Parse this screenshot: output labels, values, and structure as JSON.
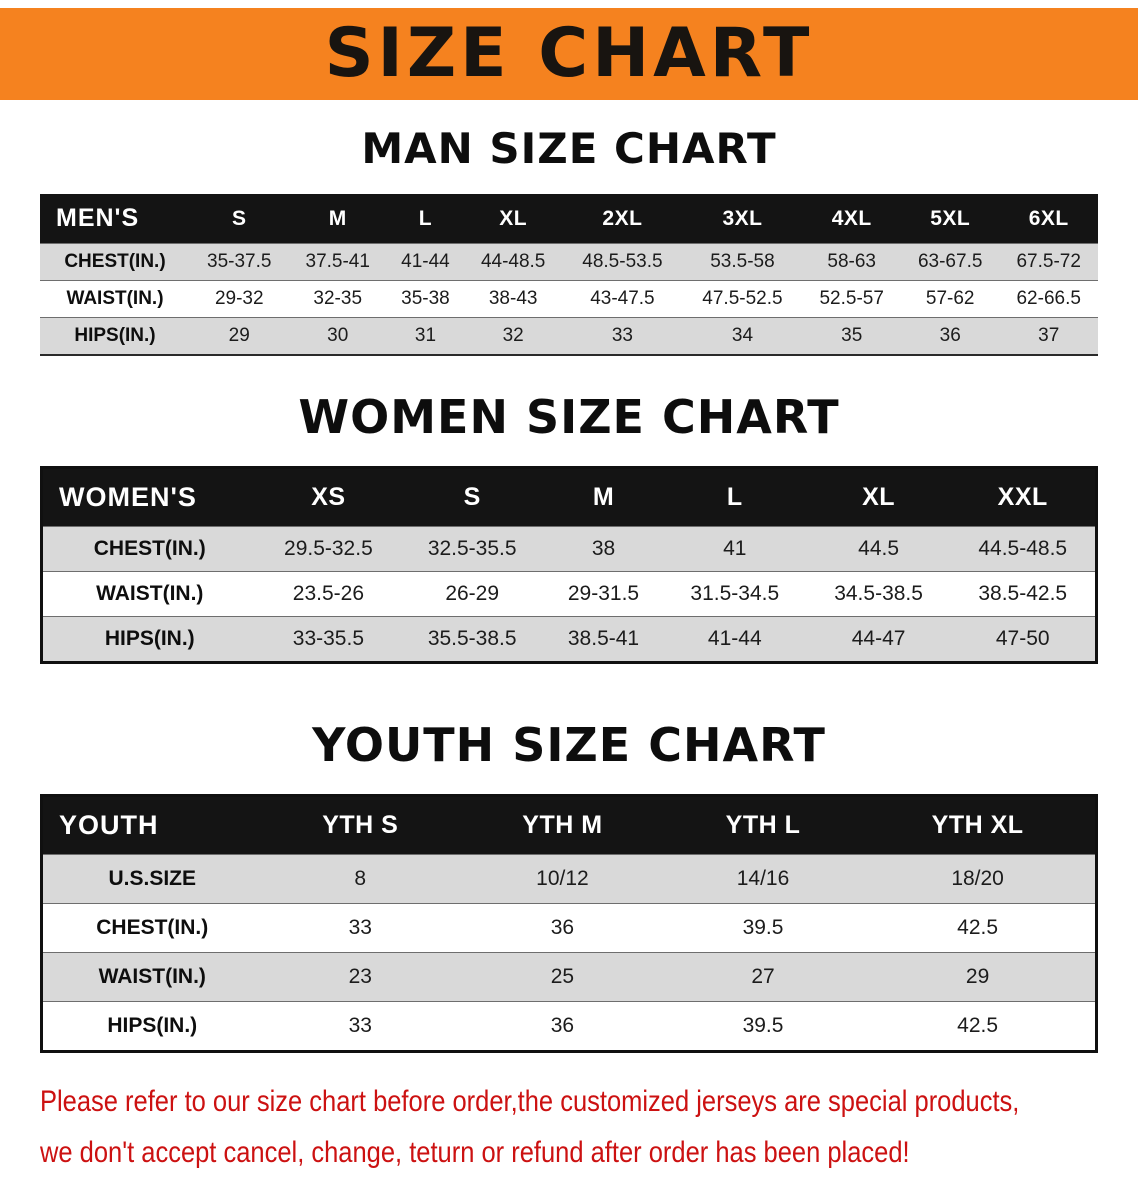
{
  "colors": {
    "banner_bg": "#f5821f",
    "header_bg": "#141414",
    "row_alt": "#d9d9d9",
    "disclaimer_color": "#cc1111"
  },
  "banner": {
    "title": "SIZE CHART"
  },
  "men": {
    "heading": "MAN SIZE CHART",
    "table": {
      "header": [
        "MEN'S",
        "S",
        "M",
        "L",
        "XL",
        "2XL",
        "3XL",
        "4XL",
        "5XL",
        "6XL"
      ],
      "rows": [
        [
          "CHEST(IN.)",
          "35-37.5",
          "37.5-41",
          "41-44",
          "44-48.5",
          "48.5-53.5",
          "53.5-58",
          "58-63",
          "63-67.5",
          "67.5-72"
        ],
        [
          "WAIST(IN.)",
          "29-32",
          "32-35",
          "35-38",
          "38-43",
          "43-47.5",
          "47.5-52.5",
          "52.5-57",
          "57-62",
          "62-66.5"
        ],
        [
          "HIPS(IN.)",
          "29",
          "30",
          "31",
          "32",
          "33",
          "34",
          "35",
          "36",
          "37"
        ]
      ]
    }
  },
  "women": {
    "heading": "WOMEN SIZE CHART",
    "table": {
      "header": [
        "WOMEN'S",
        "XS",
        "S",
        "M",
        "L",
        "XL",
        "XXL"
      ],
      "rows": [
        [
          "CHEST(IN.)",
          "29.5-32.5",
          "32.5-35.5",
          "38",
          "41",
          "44.5",
          "44.5-48.5"
        ],
        [
          "WAIST(IN.)",
          "23.5-26",
          "26-29",
          "29-31.5",
          "31.5-34.5",
          "34.5-38.5",
          "38.5-42.5"
        ],
        [
          "HIPS(IN.)",
          "33-35.5",
          "35.5-38.5",
          "38.5-41",
          "41-44",
          "44-47",
          "47-50"
        ]
      ]
    }
  },
  "youth": {
    "heading": "YOUTH SIZE CHART",
    "table": {
      "header": [
        "YOUTH",
        "YTH S",
        "YTH M",
        "YTH L",
        "YTH XL"
      ],
      "rows": [
        [
          "U.S.SIZE",
          "8",
          "10/12",
          "14/16",
          "18/20"
        ],
        [
          "CHEST(IN.)",
          "33",
          "36",
          "39.5",
          "42.5"
        ],
        [
          "WAIST(IN.)",
          "23",
          "25",
          "27",
          "29"
        ],
        [
          "HIPS(IN.)",
          "33",
          "36",
          "39.5",
          "42.5"
        ]
      ]
    }
  },
  "disclaimer": {
    "line1": "Please refer to our size chart before order,the customized jerseys are special products,",
    "line2": "we don't accept cancel, change, teturn or refund after order has been placed!"
  }
}
